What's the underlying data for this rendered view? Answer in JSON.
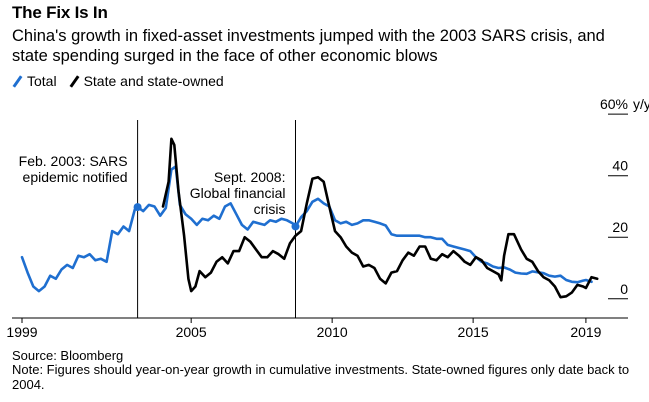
{
  "title": "The Fix Is In",
  "subtitle": "China's growth in fixed-asset investments jumped with the 2003 SARS crisis, and state spending surged in the face of other economic blows",
  "legend": [
    {
      "label": "Total",
      "color": "#1f6fd0"
    },
    {
      "label": "State and state-owned",
      "color": "#000000"
    }
  ],
  "source": "Source: Bloomberg",
  "note": "Note: Figures should year-on-year growth in cumulative investments. State-owned figures only date back to 2004.",
  "chart_data": {
    "type": "line",
    "xlim": [
      1999,
      2019.5
    ],
    "ylim": [
      -3,
      62
    ],
    "y_unit": "y/y",
    "y_ticks": [
      {
        "value": 60,
        "label": "60%"
      },
      {
        "value": 40,
        "label": "40"
      },
      {
        "value": 20,
        "label": "20"
      },
      {
        "value": 0,
        "label": "0"
      }
    ],
    "x_ticks": [
      {
        "value": 1999,
        "label": "1999"
      },
      {
        "value": 2005,
        "label": "2005"
      },
      {
        "value": 2010,
        "label": "2010"
      },
      {
        "value": 2015,
        "label": "2015"
      },
      {
        "value": 2019,
        "label": "2019"
      }
    ],
    "annotations": [
      {
        "x": 2003.1,
        "lines": [
          "Feb. 2003: SARS",
          "epidemic notified"
        ],
        "marker_y": 29.8,
        "align": "right"
      },
      {
        "x": 2008.7,
        "lines": [
          "Sept. 2008:",
          "Global financial",
          "crisis"
        ],
        "marker_y": 23.5,
        "align": "right"
      }
    ],
    "series": [
      {
        "name": "Total",
        "color": "#1f6fd0",
        "points": [
          [
            1999.0,
            13.5
          ],
          [
            1999.2,
            8.5
          ],
          [
            1999.4,
            4.0
          ],
          [
            1999.6,
            2.5
          ],
          [
            1999.8,
            4.0
          ],
          [
            2000.0,
            7.5
          ],
          [
            2000.2,
            6.5
          ],
          [
            2000.4,
            9.5
          ],
          [
            2000.6,
            11.0
          ],
          [
            2000.8,
            10.0
          ],
          [
            2001.0,
            14.0
          ],
          [
            2001.2,
            13.5
          ],
          [
            2001.4,
            14.5
          ],
          [
            2001.6,
            12.5
          ],
          [
            2001.8,
            13.0
          ],
          [
            2002.0,
            12.0
          ],
          [
            2002.2,
            22.0
          ],
          [
            2002.4,
            21.0
          ],
          [
            2002.6,
            23.5
          ],
          [
            2002.8,
            22.0
          ],
          [
            2003.0,
            29.0
          ],
          [
            2003.1,
            29.8
          ],
          [
            2003.3,
            28.5
          ],
          [
            2003.5,
            30.5
          ],
          [
            2003.7,
            30.0
          ],
          [
            2003.9,
            27.0
          ],
          [
            2004.1,
            29.5
          ],
          [
            2004.3,
            42.0
          ],
          [
            2004.45,
            43.0
          ],
          [
            2004.6,
            30.5
          ],
          [
            2004.8,
            27.5
          ],
          [
            2005.0,
            26.0
          ],
          [
            2005.2,
            24.0
          ],
          [
            2005.4,
            26.0
          ],
          [
            2005.6,
            25.5
          ],
          [
            2005.8,
            27.0
          ],
          [
            2006.0,
            26.0
          ],
          [
            2006.2,
            30.0
          ],
          [
            2006.4,
            31.0
          ],
          [
            2006.6,
            27.5
          ],
          [
            2006.8,
            24.0
          ],
          [
            2007.0,
            22.5
          ],
          [
            2007.2,
            25.0
          ],
          [
            2007.4,
            24.5
          ],
          [
            2007.6,
            24.0
          ],
          [
            2007.8,
            25.5
          ],
          [
            2008.0,
            25.0
          ],
          [
            2008.2,
            26.0
          ],
          [
            2008.4,
            25.5
          ],
          [
            2008.6,
            24.5
          ],
          [
            2008.7,
            23.5
          ],
          [
            2008.9,
            26.5
          ],
          [
            2009.1,
            28.5
          ],
          [
            2009.3,
            31.5
          ],
          [
            2009.5,
            32.5
          ],
          [
            2009.7,
            31.0
          ],
          [
            2009.9,
            30.0
          ],
          [
            2010.1,
            25.5
          ],
          [
            2010.3,
            24.5
          ],
          [
            2010.5,
            25.0
          ],
          [
            2010.7,
            24.0
          ],
          [
            2010.9,
            24.5
          ],
          [
            2011.1,
            25.5
          ],
          [
            2011.3,
            25.5
          ],
          [
            2011.5,
            25.0
          ],
          [
            2011.7,
            24.5
          ],
          [
            2011.9,
            23.8
          ],
          [
            2012.1,
            21.0
          ],
          [
            2012.3,
            20.5
          ],
          [
            2012.5,
            20.5
          ],
          [
            2012.7,
            20.5
          ],
          [
            2012.9,
            20.5
          ],
          [
            2013.1,
            20.5
          ],
          [
            2013.3,
            20.0
          ],
          [
            2013.5,
            20.0
          ],
          [
            2013.7,
            19.5
          ],
          [
            2013.9,
            19.5
          ],
          [
            2014.1,
            17.5
          ],
          [
            2014.3,
            17.0
          ],
          [
            2014.5,
            16.5
          ],
          [
            2014.7,
            16.0
          ],
          [
            2014.9,
            15.5
          ],
          [
            2015.1,
            13.5
          ],
          [
            2015.3,
            12.0
          ],
          [
            2015.5,
            11.5
          ],
          [
            2015.7,
            10.5
          ],
          [
            2015.9,
            10.0
          ],
          [
            2016.1,
            10.2
          ],
          [
            2016.3,
            9.5
          ],
          [
            2016.5,
            8.5
          ],
          [
            2016.7,
            8.2
          ],
          [
            2016.9,
            8.1
          ],
          [
            2017.1,
            8.9
          ],
          [
            2017.3,
            8.6
          ],
          [
            2017.5,
            8.3
          ],
          [
            2017.7,
            7.5
          ],
          [
            2017.9,
            7.2
          ],
          [
            2018.1,
            7.5
          ],
          [
            2018.3,
            6.1
          ],
          [
            2018.5,
            5.5
          ],
          [
            2018.7,
            5.4
          ],
          [
            2018.9,
            5.9
          ],
          [
            2019.0,
            6.1
          ],
          [
            2019.2,
            5.5
          ]
        ]
      },
      {
        "name": "State and state-owned",
        "color": "#000000",
        "points": [
          [
            2004.0,
            30.0
          ],
          [
            2004.2,
            38.0
          ],
          [
            2004.3,
            52.0
          ],
          [
            2004.4,
            50.0
          ],
          [
            2004.55,
            35.0
          ],
          [
            2004.75,
            20.5
          ],
          [
            2004.9,
            6.5
          ],
          [
            2005.0,
            2.5
          ],
          [
            2005.15,
            4.0
          ],
          [
            2005.3,
            9.0
          ],
          [
            2005.5,
            7.0
          ],
          [
            2005.7,
            8.5
          ],
          [
            2005.9,
            12.0
          ],
          [
            2006.1,
            13.5
          ],
          [
            2006.3,
            11.5
          ],
          [
            2006.5,
            15.5
          ],
          [
            2006.7,
            15.5
          ],
          [
            2006.9,
            20.0
          ],
          [
            2007.1,
            18.5
          ],
          [
            2007.3,
            16.0
          ],
          [
            2007.5,
            13.5
          ],
          [
            2007.7,
            13.5
          ],
          [
            2007.9,
            15.5
          ],
          [
            2008.1,
            14.5
          ],
          [
            2008.3,
            13.0
          ],
          [
            2008.5,
            18.0
          ],
          [
            2008.7,
            20.5
          ],
          [
            2008.9,
            22.0
          ],
          [
            2009.1,
            31.0
          ],
          [
            2009.3,
            39.0
          ],
          [
            2009.5,
            39.5
          ],
          [
            2009.7,
            38.0
          ],
          [
            2009.9,
            30.0
          ],
          [
            2010.1,
            22.0
          ],
          [
            2010.3,
            20.0
          ],
          [
            2010.5,
            17.0
          ],
          [
            2010.7,
            15.0
          ],
          [
            2010.9,
            14.0
          ],
          [
            2011.1,
            10.5
          ],
          [
            2011.3,
            11.0
          ],
          [
            2011.5,
            10.0
          ],
          [
            2011.7,
            6.5
          ],
          [
            2011.9,
            5.0
          ],
          [
            2012.1,
            8.5
          ],
          [
            2012.3,
            9.0
          ],
          [
            2012.5,
            12.5
          ],
          [
            2012.7,
            15.0
          ],
          [
            2012.9,
            14.0
          ],
          [
            2013.1,
            17.0
          ],
          [
            2013.3,
            17.0
          ],
          [
            2013.5,
            13.0
          ],
          [
            2013.7,
            12.5
          ],
          [
            2013.9,
            14.5
          ],
          [
            2014.1,
            13.5
          ],
          [
            2014.3,
            15.5
          ],
          [
            2014.5,
            14.0
          ],
          [
            2014.7,
            12.0
          ],
          [
            2014.9,
            11.0
          ],
          [
            2015.1,
            13.5
          ],
          [
            2015.3,
            12.5
          ],
          [
            2015.5,
            10.0
          ],
          [
            2015.7,
            9.0
          ],
          [
            2015.9,
            8.0
          ],
          [
            2016.0,
            6.0
          ],
          [
            2016.1,
            14.0
          ],
          [
            2016.25,
            21.0
          ],
          [
            2016.45,
            21.0
          ],
          [
            2016.7,
            16.0
          ],
          [
            2016.9,
            13.0
          ],
          [
            2017.1,
            12.0
          ],
          [
            2017.3,
            9.0
          ],
          [
            2017.5,
            7.0
          ],
          [
            2017.7,
            6.0
          ],
          [
            2017.9,
            4.0
          ],
          [
            2018.1,
            0.5
          ],
          [
            2018.3,
            0.8
          ],
          [
            2018.5,
            2.0
          ],
          [
            2018.7,
            4.5
          ],
          [
            2018.9,
            4.0
          ],
          [
            2019.0,
            3.5
          ],
          [
            2019.2,
            7.0
          ],
          [
            2019.4,
            6.5
          ]
        ]
      }
    ]
  }
}
